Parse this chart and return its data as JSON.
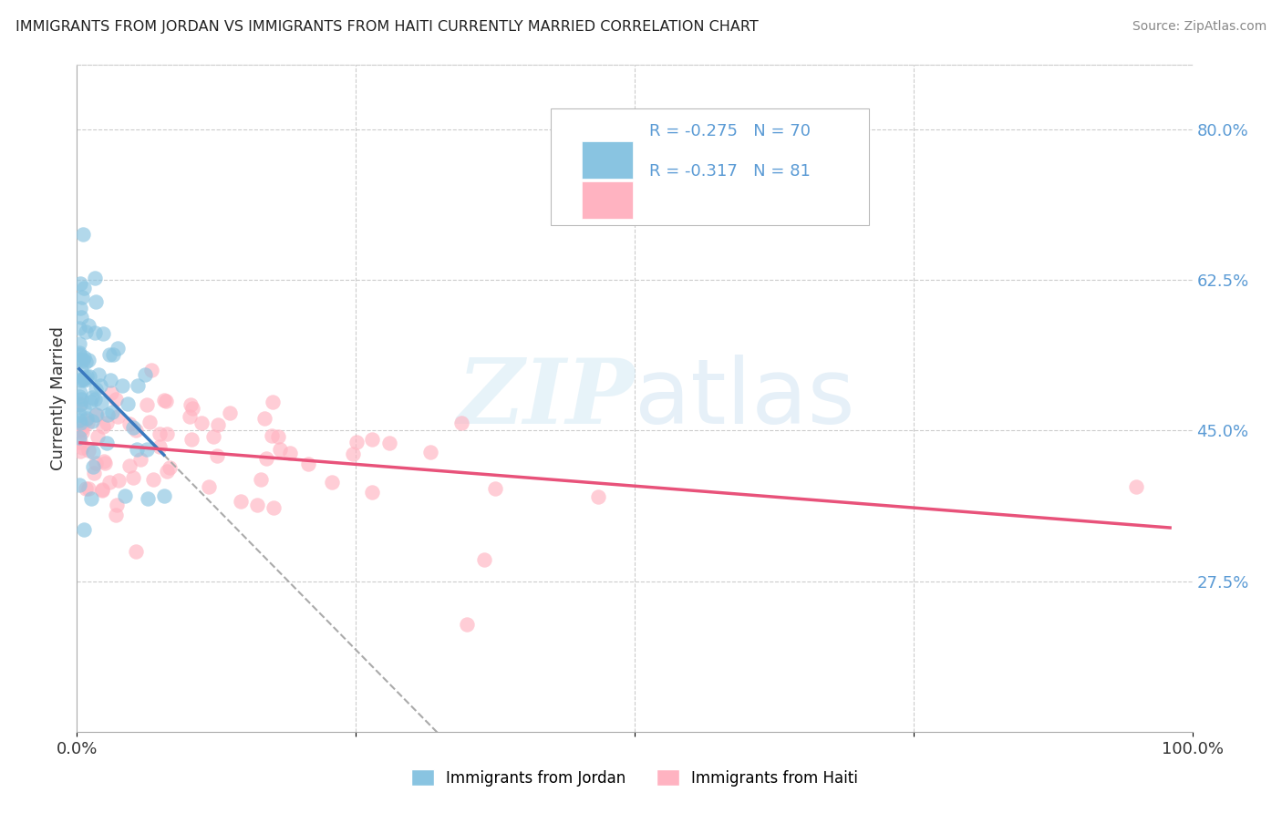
{
  "title": "IMMIGRANTS FROM JORDAN VS IMMIGRANTS FROM HAITI CURRENTLY MARRIED CORRELATION CHART",
  "source": "Source: ZipAtlas.com",
  "ylabel": "Currently Married",
  "xlim": [
    0,
    1.0
  ],
  "ylim": [
    0.1,
    0.875
  ],
  "ytick_right_positions": [
    0.275,
    0.45,
    0.625,
    0.8
  ],
  "ytick_right_labels": [
    "27.5%",
    "45.0%",
    "62.5%",
    "80.0%"
  ],
  "jordan_color": "#89c4e1",
  "haiti_color": "#ffb3c1",
  "jordan_line_color": "#3a7abf",
  "haiti_line_color": "#e8527a",
  "dashed_line_color": "#aaaaaa",
  "legend_jordan_r": "-0.275",
  "legend_jordan_n": "70",
  "legend_haiti_r": "-0.317",
  "legend_haiti_n": "81",
  "watermark_zip": "ZIP",
  "watermark_atlas": "atlas",
  "grid_color": "#cccccc",
  "background_color": "#ffffff",
  "right_label_color": "#5b9bd5",
  "jordan_r": -0.275,
  "jordan_n": 70,
  "haiti_r": -0.317,
  "haiti_n": 81
}
